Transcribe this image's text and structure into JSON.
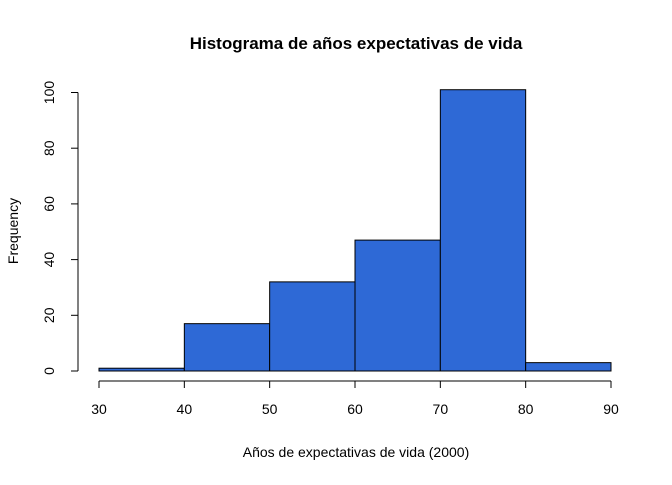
{
  "chart_data": {
    "type": "bar",
    "title": "Histograma de años expectativas de vida",
    "xlabel": "Años de expectativas de vida (2000)",
    "ylabel": "Frequency",
    "bins": [
      {
        "x0": 30,
        "x1": 40,
        "count": 1
      },
      {
        "x0": 40,
        "x1": 50,
        "count": 17
      },
      {
        "x0": 50,
        "x1": 60,
        "count": 32
      },
      {
        "x0": 60,
        "x1": 70,
        "count": 47
      },
      {
        "x0": 70,
        "x1": 80,
        "count": 101
      },
      {
        "x0": 80,
        "x1": 90,
        "count": 3
      }
    ],
    "xlim": [
      30,
      90
    ],
    "ylim": [
      0,
      100
    ],
    "x_ticks": [
      "30",
      "40",
      "50",
      "60",
      "70",
      "80",
      "90"
    ],
    "y_ticks": [
      "0",
      "20",
      "40",
      "60",
      "80",
      "100"
    ],
    "bar_color": "#2e69d6",
    "bar_border_color": "#000000",
    "grid": false,
    "legend": "none"
  }
}
